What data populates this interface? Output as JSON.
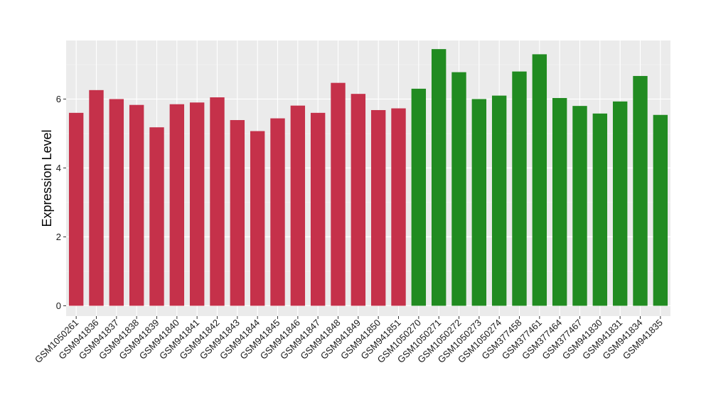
{
  "chart_data": {
    "type": "bar",
    "ylabel": "Expression Level",
    "xlabel": "",
    "ylim": [
      -0.3,
      7.7
    ],
    "yticks": [
      0,
      2,
      4,
      6
    ],
    "grid": true,
    "background": "#ebebeb",
    "categories": [
      "GSM1050261",
      "GSM941836",
      "GSM941837",
      "GSM941838",
      "GSM941839",
      "GSM941840",
      "GSM941841",
      "GSM941842",
      "GSM941843",
      "GSM941844",
      "GSM941845",
      "GSM941846",
      "GSM941847",
      "GSM941848",
      "GSM941849",
      "GSM941850",
      "GSM941851",
      "GSM1050270",
      "GSM1050271",
      "GSM1050272",
      "GSM1050273",
      "GSM1050274",
      "GSM377458",
      "GSM377461",
      "GSM377464",
      "GSM377467",
      "GSM941830",
      "GSM941831",
      "GSM941834",
      "GSM941835"
    ],
    "values": [
      5.6,
      6.26,
      6.0,
      5.83,
      5.18,
      5.85,
      5.9,
      6.05,
      5.39,
      5.07,
      5.44,
      5.81,
      5.6,
      6.47,
      6.15,
      5.68,
      5.73,
      6.3,
      7.45,
      6.78,
      6.0,
      6.1,
      6.8,
      7.3,
      6.03,
      5.8,
      5.58,
      5.93,
      6.67,
      5.54
    ],
    "group_colors": [
      "#c5314a",
      "#218b21"
    ],
    "groups": [
      0,
      0,
      0,
      0,
      0,
      0,
      0,
      0,
      0,
      0,
      0,
      0,
      0,
      0,
      0,
      0,
      0,
      1,
      1,
      1,
      1,
      1,
      1,
      1,
      1,
      1,
      1,
      1,
      1,
      1
    ]
  }
}
